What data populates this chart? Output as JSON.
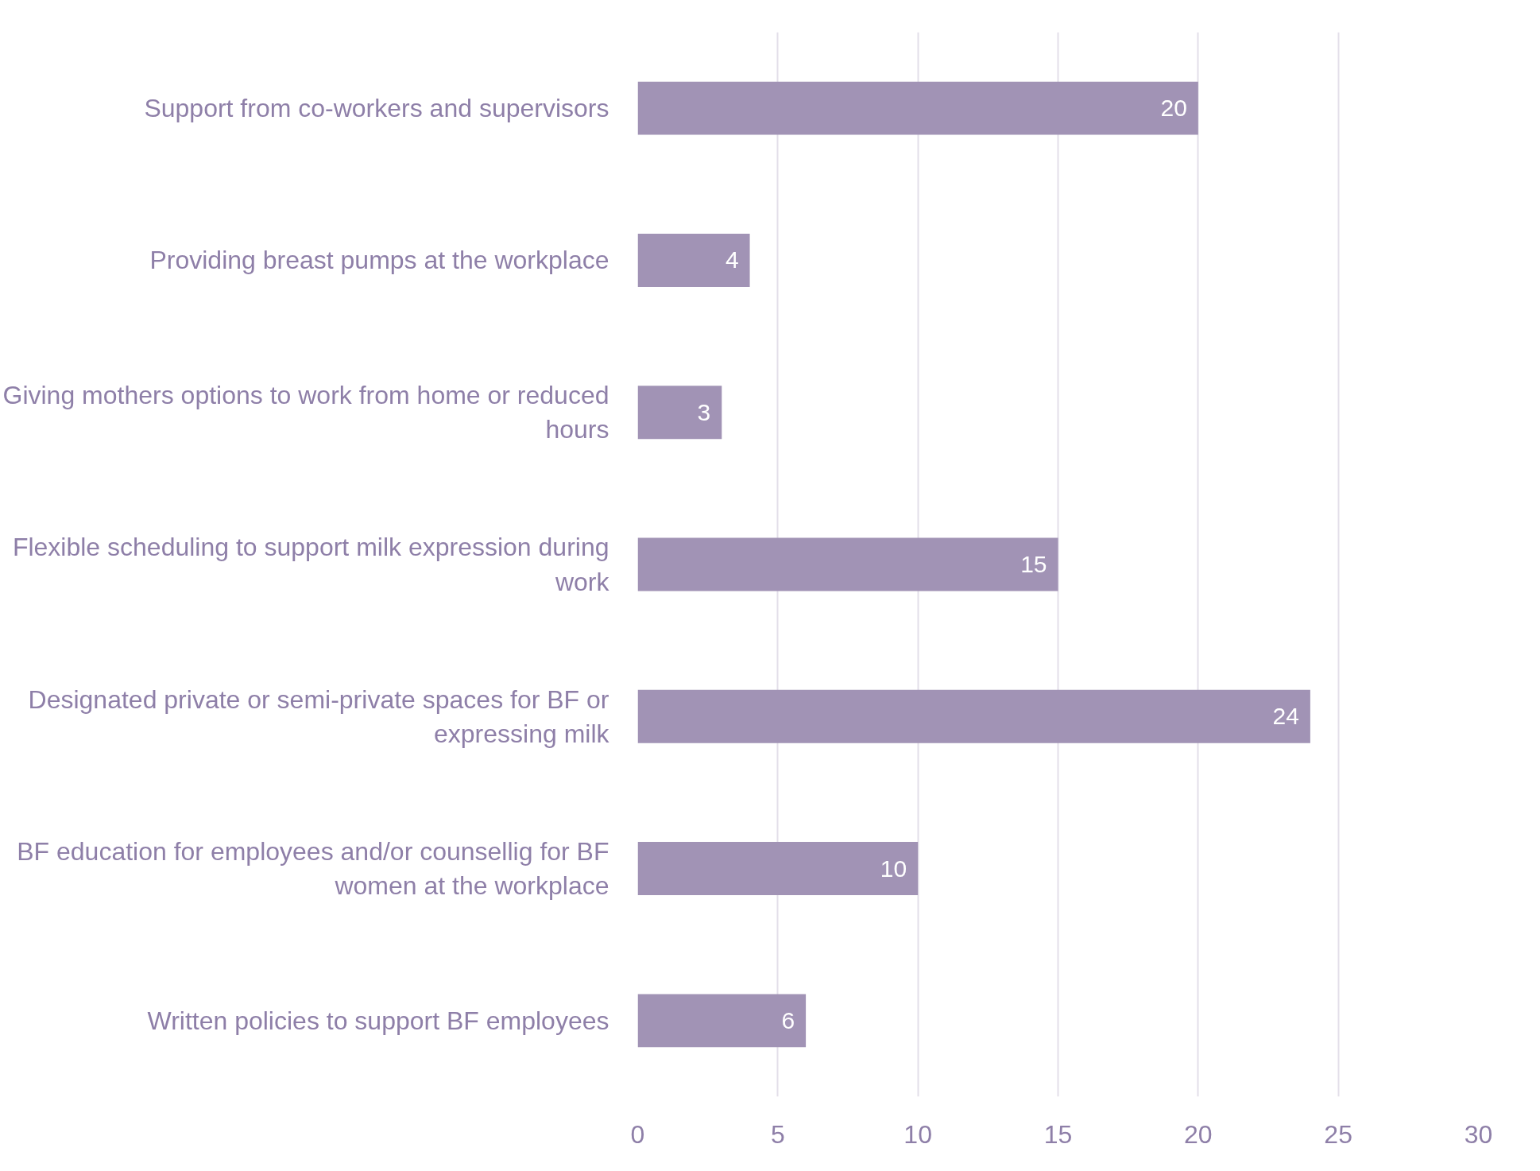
{
  "chart_data": {
    "type": "bar",
    "orientation": "horizontal",
    "categories": [
      "Support from co-workers and supervisors",
      "Providing breast pumps at the workplace",
      "Giving mothers options to work from home or reduced hours",
      "Flexible scheduling to support milk expression during work",
      "Designated private or semi-private spaces for BF or expressing milk",
      "BF education for employees and/or counsellig for BF women at the workplace",
      "Written policies to support BF employees"
    ],
    "values": [
      20,
      4,
      3,
      15,
      24,
      10,
      6
    ],
    "color": "#a193b5",
    "xlim": [
      0,
      30
    ],
    "xticks": [
      0,
      5,
      10,
      15,
      20,
      25,
      30
    ],
    "grid": "x",
    "data_labels": true
  }
}
